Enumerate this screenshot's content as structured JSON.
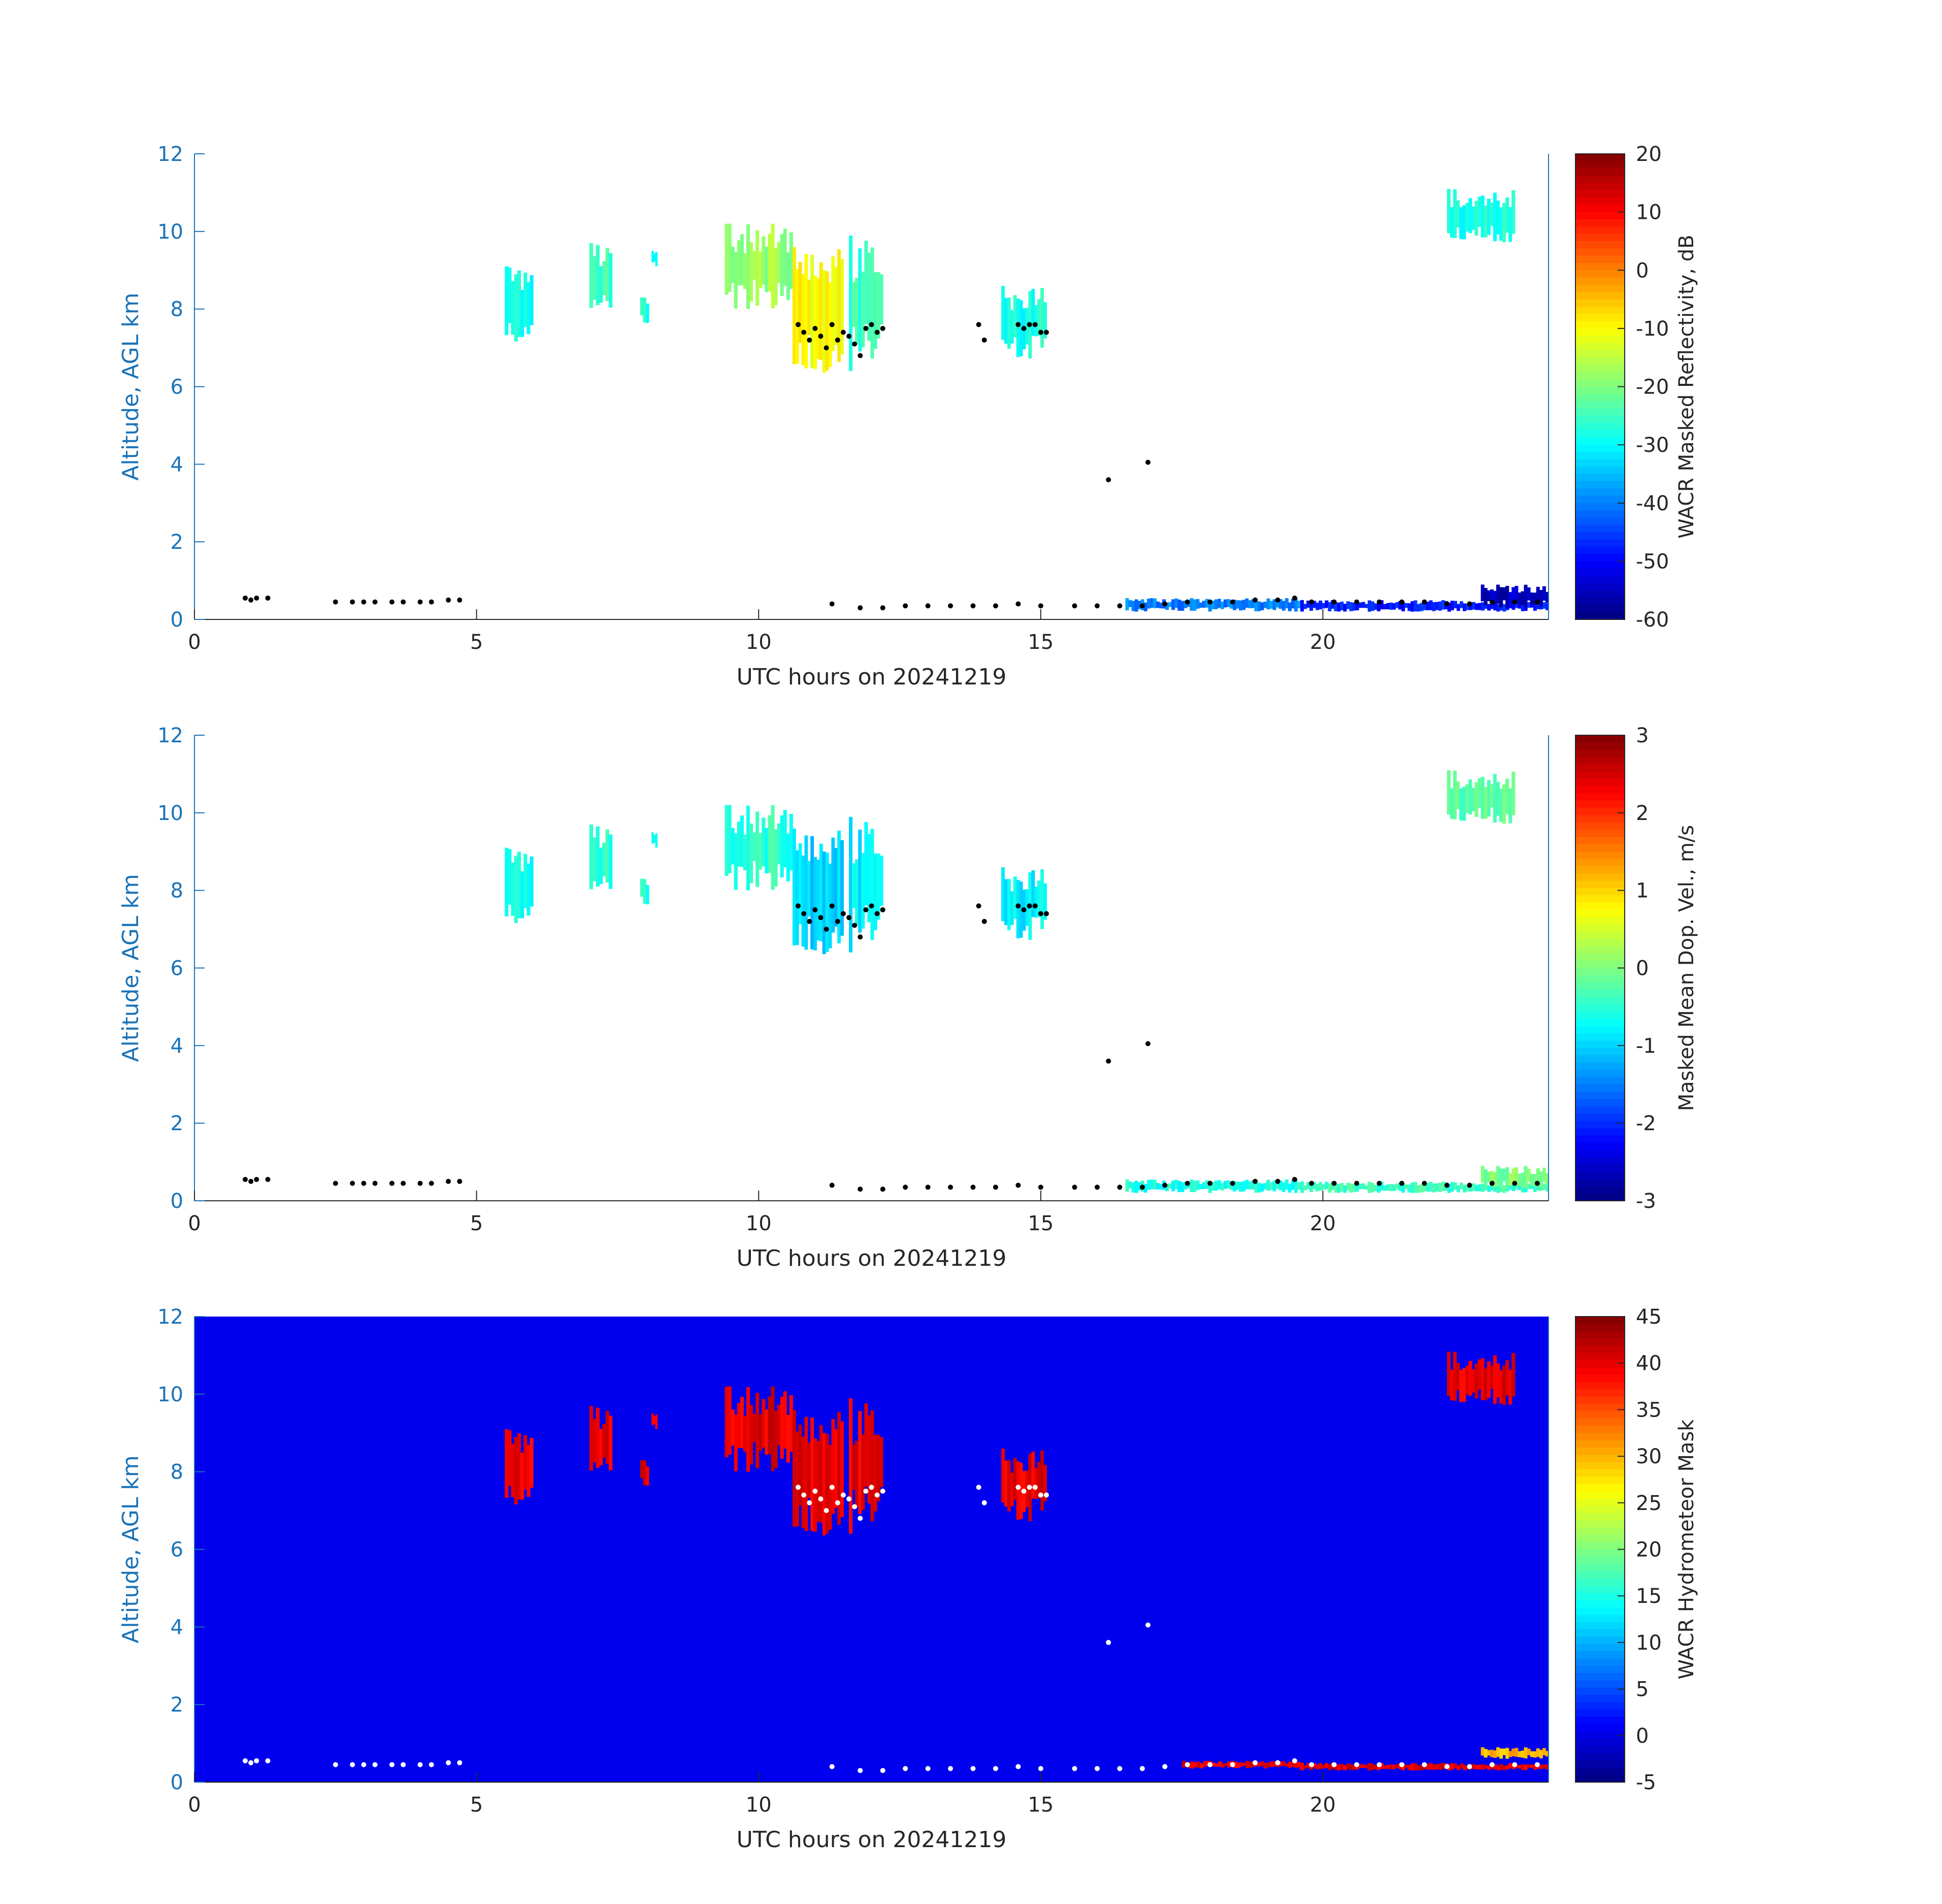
{
  "chart_data": [
    {
      "type": "heatmap",
      "xlabel": "UTC hours on 20241219",
      "ylabel": "Altitude, AGL km",
      "xlim": [
        0,
        24
      ],
      "ylim": [
        0,
        12
      ],
      "x_ticks": [
        "0",
        "5",
        "10",
        "15",
        "20"
      ],
      "y_ticks": [
        "0",
        "2",
        "4",
        "6",
        "8",
        "10",
        "12"
      ],
      "background": "white",
      "colorbar": {
        "label": "WACR Masked Reflectivity, dB",
        "range": [
          -60,
          20
        ],
        "ticks": [
          "20",
          "10",
          "0",
          "-10",
          "-20",
          "-30",
          "-40",
          "-50",
          "-60"
        ],
        "colormap": "jet"
      },
      "cloud_regions": [
        {
          "x": [
            5.5,
            6.0
          ],
          "y": [
            7.0,
            9.1
          ],
          "value": -28
        },
        {
          "x": [
            7.0,
            7.4
          ],
          "y": [
            7.9,
            9.7
          ],
          "value": -25
        },
        {
          "x": [
            7.9,
            8.05
          ],
          "y": [
            7.6,
            8.3
          ],
          "value": -28
        },
        {
          "x": [
            8.1,
            8.2
          ],
          "y": [
            9.1,
            9.5
          ],
          "value": -28
        },
        {
          "x": [
            9.4,
            10.6
          ],
          "y": [
            8.0,
            10.2
          ],
          "value": -18
        },
        {
          "x": [
            10.6,
            11.5
          ],
          "y": [
            6.3,
            9.6
          ],
          "value": -10
        },
        {
          "x": [
            11.6,
            12.2
          ],
          "y": [
            6.4,
            9.9
          ],
          "value": -25
        },
        {
          "x": [
            14.3,
            15.1
          ],
          "y": [
            6.7,
            8.6
          ],
          "value": -28
        },
        {
          "x": [
            22.2,
            23.4
          ],
          "y": [
            9.7,
            11.1
          ],
          "value": -28
        },
        {
          "x": [
            16.5,
            19.6
          ],
          "y": [
            0.2,
            0.55
          ],
          "value": -40
        },
        {
          "x": [
            19.6,
            24.0
          ],
          "y": [
            0.2,
            0.5
          ],
          "value": -48
        },
        {
          "x": [
            22.8,
            24.0
          ],
          "y": [
            0.3,
            0.9
          ],
          "value": -55
        }
      ]
    },
    {
      "type": "heatmap",
      "xlabel": "UTC hours on 20241219",
      "ylabel": "Altitude, AGL km",
      "xlim": [
        0,
        24
      ],
      "ylim": [
        0,
        12
      ],
      "x_ticks": [
        "0",
        "5",
        "10",
        "15",
        "20"
      ],
      "y_ticks": [
        "0",
        "2",
        "4",
        "6",
        "8",
        "10",
        "12"
      ],
      "background": "white",
      "colorbar": {
        "label": "Masked Mean Dop. Vel., m/s",
        "range": [
          -3,
          3
        ],
        "ticks": [
          "3",
          "2",
          "1",
          "0",
          "-1",
          "-2",
          "-3"
        ],
        "colormap": "jet"
      },
      "cloud_regions": [
        {
          "x": [
            5.5,
            6.0
          ],
          "y": [
            7.0,
            9.1
          ],
          "value": -0.6
        },
        {
          "x": [
            7.0,
            7.4
          ],
          "y": [
            7.9,
            9.7
          ],
          "value": -0.5
        },
        {
          "x": [
            7.9,
            8.05
          ],
          "y": [
            7.6,
            8.3
          ],
          "value": -0.6
        },
        {
          "x": [
            8.1,
            8.2
          ],
          "y": [
            9.1,
            9.5
          ],
          "value": -0.5
        },
        {
          "x": [
            9.4,
            10.6
          ],
          "y": [
            8.0,
            10.2
          ],
          "value": -0.5
        },
        {
          "x": [
            10.6,
            11.5
          ],
          "y": [
            6.3,
            9.6
          ],
          "value": -1.0
        },
        {
          "x": [
            11.6,
            12.2
          ],
          "y": [
            6.4,
            9.9
          ],
          "value": -0.8
        },
        {
          "x": [
            14.3,
            15.1
          ],
          "y": [
            6.7,
            8.6
          ],
          "value": -0.8
        },
        {
          "x": [
            22.2,
            23.4
          ],
          "y": [
            9.7,
            11.1
          ],
          "value": -0.2
        },
        {
          "x": [
            16.5,
            19.6
          ],
          "y": [
            0.2,
            0.55
          ],
          "value": -0.6
        },
        {
          "x": [
            19.6,
            24.0
          ],
          "y": [
            0.2,
            0.5
          ],
          "value": -0.4
        },
        {
          "x": [
            22.8,
            24.0
          ],
          "y": [
            0.3,
            0.9
          ],
          "value": 0.0
        }
      ]
    },
    {
      "type": "heatmap",
      "xlabel": "UTC hours on 20241219",
      "ylabel": "Altitude, AGL km",
      "xlim": [
        0,
        24
      ],
      "ylim": [
        0,
        12
      ],
      "x_ticks": [
        "0",
        "5",
        "10",
        "15",
        "20"
      ],
      "y_ticks": [
        "0",
        "2",
        "4",
        "6",
        "8",
        "10",
        "12"
      ],
      "background_value": 0,
      "colorbar": {
        "label": "WACR Hydrometeor Mask",
        "range": [
          -5,
          45
        ],
        "ticks": [
          "45",
          "40",
          "35",
          "30",
          "25",
          "20",
          "15",
          "10",
          "5",
          "0",
          "-5"
        ],
        "colormap": "jet"
      },
      "cloud_regions": [
        {
          "x": [
            5.5,
            6.0
          ],
          "y": [
            7.0,
            9.1
          ],
          "value": 40
        },
        {
          "x": [
            7.0,
            7.4
          ],
          "y": [
            7.9,
            9.7
          ],
          "value": 40
        },
        {
          "x": [
            7.9,
            8.05
          ],
          "y": [
            7.6,
            8.3
          ],
          "value": 40
        },
        {
          "x": [
            8.1,
            8.2
          ],
          "y": [
            9.1,
            9.5
          ],
          "value": 40
        },
        {
          "x": [
            9.4,
            10.6
          ],
          "y": [
            8.0,
            10.2
          ],
          "value": 40
        },
        {
          "x": [
            10.6,
            11.5
          ],
          "y": [
            6.3,
            9.6
          ],
          "value": 40
        },
        {
          "x": [
            11.6,
            12.2
          ],
          "y": [
            6.4,
            9.9
          ],
          "value": 40
        },
        {
          "x": [
            14.3,
            15.1
          ],
          "y": [
            6.7,
            8.6
          ],
          "value": 40
        },
        {
          "x": [
            22.2,
            23.4
          ],
          "y": [
            9.7,
            11.1
          ],
          "value": 40
        },
        {
          "x": [
            17.5,
            19.6
          ],
          "y": [
            0.35,
            0.55
          ],
          "value": 40
        },
        {
          "x": [
            19.6,
            24.0
          ],
          "y": [
            0.3,
            0.5
          ],
          "value": 40
        },
        {
          "x": [
            22.8,
            24.0
          ],
          "y": [
            0.6,
            0.9
          ],
          "value": 30
        }
      ]
    }
  ],
  "cloud_base_points": {
    "upper": [
      [
        10.7,
        7.6
      ],
      [
        10.8,
        7.4
      ],
      [
        10.9,
        7.2
      ],
      [
        11.0,
        7.5
      ],
      [
        11.1,
        7.3
      ],
      [
        11.2,
        7.0
      ],
      [
        11.3,
        7.6
      ],
      [
        11.4,
        7.2
      ],
      [
        11.5,
        7.4
      ],
      [
        11.6,
        7.3
      ],
      [
        11.7,
        7.1
      ],
      [
        11.8,
        6.8
      ],
      [
        11.9,
        7.5
      ],
      [
        12.0,
        7.6
      ],
      [
        12.1,
        7.4
      ],
      [
        12.2,
        7.5
      ],
      [
        13.9,
        7.6
      ],
      [
        14.0,
        7.2
      ],
      [
        14.6,
        7.6
      ],
      [
        14.7,
        7.5
      ],
      [
        14.8,
        7.6
      ],
      [
        14.9,
        7.6
      ],
      [
        15.0,
        7.4
      ],
      [
        15.1,
        7.4
      ],
      [
        16.2,
        3.6
      ],
      [
        16.9,
        4.05
      ]
    ],
    "lower": [
      [
        0.9,
        0.55
      ],
      [
        1.0,
        0.5
      ],
      [
        1.1,
        0.55
      ],
      [
        1.3,
        0.55
      ],
      [
        2.5,
        0.45
      ],
      [
        2.8,
        0.45
      ],
      [
        3.0,
        0.45
      ],
      [
        3.2,
        0.45
      ],
      [
        3.5,
        0.45
      ],
      [
        3.7,
        0.45
      ],
      [
        4.0,
        0.45
      ],
      [
        4.2,
        0.45
      ],
      [
        4.5,
        0.5
      ],
      [
        4.7,
        0.5
      ],
      [
        11.3,
        0.4
      ],
      [
        11.8,
        0.3
      ],
      [
        12.2,
        0.3
      ],
      [
        12.6,
        0.35
      ],
      [
        13.0,
        0.35
      ],
      [
        13.4,
        0.35
      ],
      [
        13.8,
        0.35
      ],
      [
        14.2,
        0.35
      ],
      [
        14.6,
        0.4
      ],
      [
        15.0,
        0.35
      ],
      [
        15.6,
        0.35
      ],
      [
        16.0,
        0.35
      ],
      [
        16.4,
        0.35
      ],
      [
        16.8,
        0.35
      ],
      [
        17.2,
        0.4
      ],
      [
        17.6,
        0.45
      ],
      [
        18.0,
        0.45
      ],
      [
        18.4,
        0.45
      ],
      [
        18.8,
        0.5
      ],
      [
        19.2,
        0.5
      ],
      [
        19.5,
        0.55
      ],
      [
        19.8,
        0.45
      ],
      [
        20.2,
        0.45
      ],
      [
        20.6,
        0.45
      ],
      [
        21.0,
        0.45
      ],
      [
        21.4,
        0.45
      ],
      [
        21.8,
        0.45
      ],
      [
        22.2,
        0.4
      ],
      [
        22.6,
        0.4
      ],
      [
        23.0,
        0.45
      ],
      [
        23.4,
        0.45
      ],
      [
        23.8,
        0.45
      ]
    ]
  }
}
